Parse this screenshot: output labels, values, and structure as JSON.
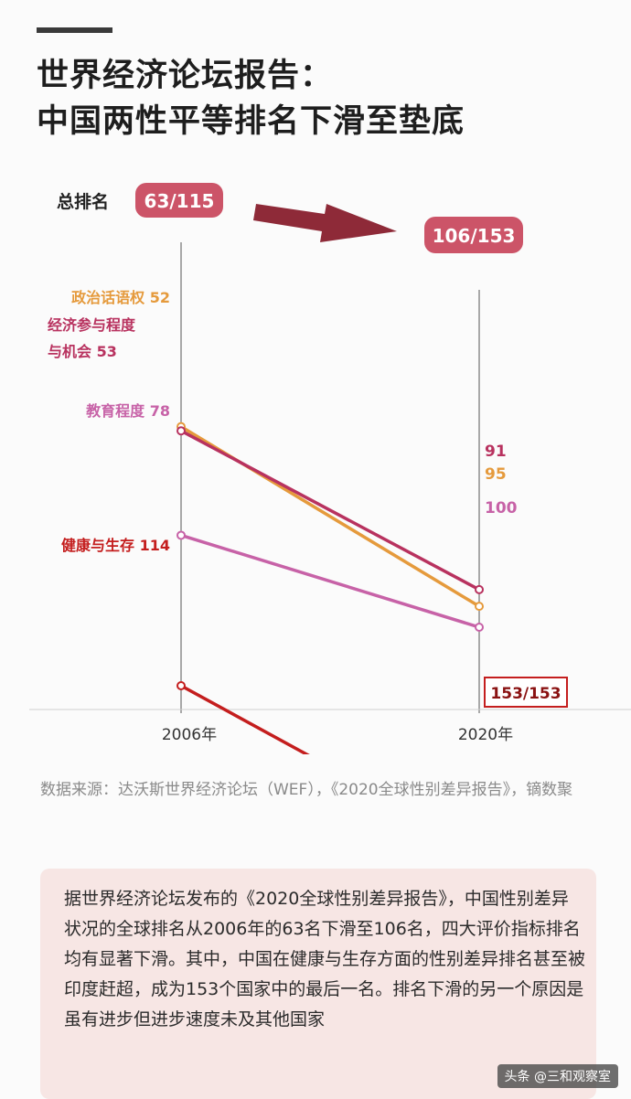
{
  "title_lines": [
    "世界经济论坛报告：",
    "中国两性平等排名下滑至垫底"
  ],
  "chart_data": {
    "type": "line",
    "x": [
      "2006年",
      "2020年"
    ],
    "total_label": "总排名",
    "total_rank": {
      "2006": "63/115",
      "2020": "106/153"
    },
    "series": [
      {
        "name": "政治话语权",
        "values": [
          52,
          95
        ],
        "color": "#e59a3c"
      },
      {
        "name": "经济参与程度与机会",
        "name_lines": [
          "经济参与程度",
          "与机会"
        ],
        "values": [
          53,
          91
        ],
        "color": "#b8325f"
      },
      {
        "name": "教育程度",
        "values": [
          78,
          100
        ],
        "color": "#c762a7"
      },
      {
        "name": "健康与生存",
        "values": [
          114,
          153
        ],
        "color": "#c41e1e"
      }
    ],
    "end_labels": [
      "91",
      "95",
      "100",
      "153/153"
    ],
    "y_unit": "rank (lower is better)"
  },
  "source": "数据来源：达沃斯世界经济论坛（WEF），《2020全球性别差异报告》，镝数聚",
  "summary": "据世界经济论坛发布的《2020全球性别差异报告》，中国性别差异状况的全球排名从2006年的63名下滑至106名，四大评价指标排名均有显著下滑。其中，中国在健康与生存方面的性别差异排名甚至被印度赶超，成为153个国家中的最后一名。排名下滑的另一个原因是虽有进步但进步速度未及其他国家",
  "watermark": "头条 @三和观察室",
  "colors": {
    "pill": "#cc5468",
    "arrow": "#8e2a38",
    "axis": "#555555",
    "box": "#f7e6e4"
  }
}
